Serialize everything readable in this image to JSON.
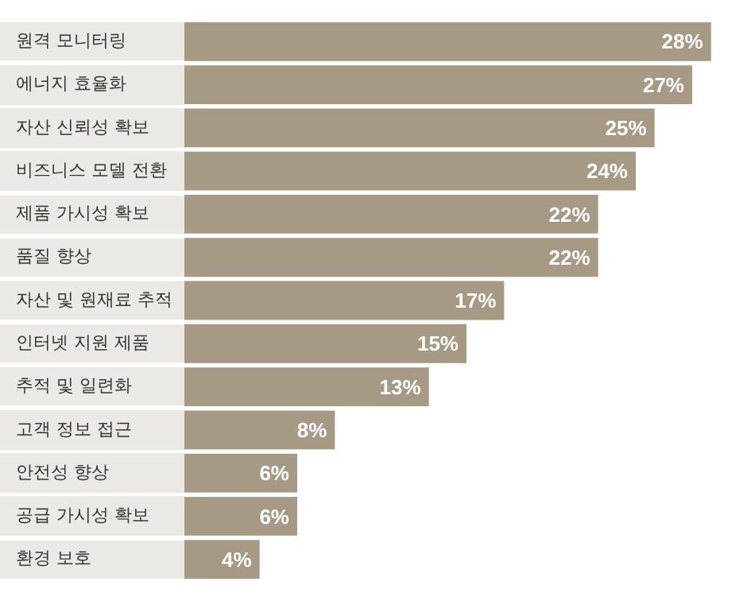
{
  "chart_data": {
    "type": "bar",
    "orientation": "horizontal",
    "categories": [
      "원격 모니터링",
      "에너지 효율화",
      "자산 신뢰성 확보",
      "비즈니스 모델 전환",
      "제품 가시성 확보",
      "품질 향상",
      "자산 및 원재료 추적",
      "인터넷 지원 제품",
      "추적 및 일련화",
      "고객 정보 접근",
      "안전성 향상",
      "공급 가시성 확보",
      "환경 보호"
    ],
    "values": [
      28,
      27,
      25,
      24,
      22,
      22,
      17,
      15,
      13,
      8,
      6,
      6,
      4
    ],
    "value_labels": [
      "28%",
      "27%",
      "25%",
      "24%",
      "22%",
      "22%",
      "17%",
      "15%",
      "13%",
      "8%",
      "6%",
      "6%",
      "4%"
    ],
    "color": "#a69a85",
    "legend": false
  }
}
